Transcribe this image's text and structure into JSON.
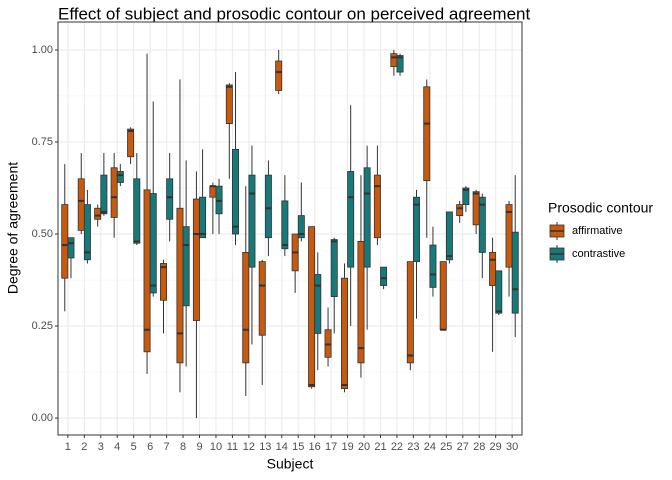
{
  "chart_data": {
    "type": "boxplot",
    "title": "Effect of subject and prosodic contour on perceived agreement",
    "x_label": "Subject",
    "y_label": "Degree of agreement",
    "legend_title": "Prosodic contour",
    "legend_position": "right",
    "grid": true,
    "categories": [
      "1",
      "2",
      "3",
      "4",
      "5",
      "6",
      "7",
      "8",
      "9",
      "10",
      "11",
      "12",
      "13",
      "14",
      "15",
      "16",
      "17",
      "19",
      "20",
      "21",
      "22",
      "23",
      "24",
      "25",
      "27",
      "28",
      "29",
      "30"
    ],
    "ylim": [
      -0.046,
      1.076
    ],
    "yticks": [
      {
        "value": 0,
        "label": "0.00"
      },
      {
        "value": 0.25,
        "label": "0.25"
      },
      {
        "value": 0.5,
        "label": "0.50"
      },
      {
        "value": 0.75,
        "label": "0.75"
      },
      {
        "value": 1,
        "label": "1.00"
      }
    ],
    "series": [
      {
        "name": "affirmative",
        "color": "#c85a0f",
        "min": [
          0.29,
          0.5,
          0.52,
          0.49,
          0.69,
          0.12,
          0.23,
          0.07,
          0.0,
          0.5,
          0.65,
          0.06,
          0.09,
          0.88,
          0.34,
          0.08,
          0.14,
          0.07,
          0.11,
          0.47,
          0.93,
          0.13,
          0.49,
          0.24,
          0.53,
          0.5,
          0.18,
          0.33
        ],
        "q1": [
          0.38,
          0.51,
          0.54,
          0.545,
          0.71,
          0.18,
          0.32,
          0.15,
          0.265,
          0.6,
          0.8,
          0.15,
          0.225,
          0.89,
          0.4,
          0.085,
          0.165,
          0.08,
          0.15,
          0.49,
          0.955,
          0.15,
          0.645,
          0.24,
          0.55,
          0.525,
          0.36,
          0.41
        ],
        "median": [
          0.47,
          0.59,
          0.55,
          0.6,
          0.78,
          0.24,
          0.41,
          0.23,
          0.5,
          0.63,
          0.9,
          0.24,
          0.36,
          0.94,
          0.45,
          0.09,
          0.2,
          0.09,
          0.19,
          0.63,
          0.98,
          0.17,
          0.8,
          0.24,
          0.57,
          0.61,
          0.43,
          0.56
        ],
        "q3": [
          0.58,
          0.65,
          0.57,
          0.68,
          0.785,
          0.62,
          0.42,
          0.57,
          0.595,
          0.63,
          0.905,
          0.45,
          0.425,
          0.97,
          0.5,
          0.52,
          0.24,
          0.38,
          0.48,
          0.66,
          0.99,
          0.425,
          0.9,
          0.425,
          0.58,
          0.615,
          0.45,
          0.58
        ],
        "max": [
          0.69,
          0.72,
          0.58,
          0.72,
          0.79,
          0.99,
          0.43,
          0.92,
          0.67,
          0.64,
          0.91,
          0.63,
          0.43,
          1.0,
          0.5,
          0.52,
          0.3,
          0.42,
          0.66,
          0.74,
          1.0,
          0.425,
          0.92,
          0.425,
          0.59,
          0.62,
          0.49,
          0.59
        ]
      },
      {
        "name": "contrastive",
        "color": "#17797a",
        "min": [
          0.38,
          0.42,
          0.55,
          0.63,
          0.47,
          0.33,
          0.48,
          0.14,
          0.49,
          0.5,
          0.47,
          0.2,
          0.44,
          0.44,
          0.48,
          0.13,
          0.23,
          0.25,
          0.24,
          0.35,
          0.93,
          0.27,
          0.33,
          0.42,
          0.56,
          0.38,
          0.28,
          0.22
        ],
        "q1": [
          0.435,
          0.43,
          0.555,
          0.64,
          0.475,
          0.34,
          0.54,
          0.305,
          0.49,
          0.555,
          0.5,
          0.41,
          0.49,
          0.46,
          0.49,
          0.23,
          0.33,
          0.41,
          0.41,
          0.36,
          0.94,
          0.425,
          0.355,
          0.43,
          0.58,
          0.45,
          0.285,
          0.285
        ],
        "median": [
          0.475,
          0.45,
          0.56,
          0.66,
          0.48,
          0.36,
          0.6,
          0.47,
          0.5,
          0.59,
          0.52,
          0.61,
          0.57,
          0.47,
          0.5,
          0.36,
          0.48,
          0.6,
          0.61,
          0.38,
          0.98,
          0.58,
          0.39,
          0.44,
          0.62,
          0.58,
          0.29,
          0.35
        ],
        "q3": [
          0.49,
          0.58,
          0.66,
          0.67,
          0.65,
          0.61,
          0.65,
          0.52,
          0.6,
          0.63,
          0.73,
          0.66,
          0.66,
          0.59,
          0.55,
          0.39,
          0.485,
          0.67,
          0.68,
          0.41,
          0.985,
          0.6,
          0.47,
          0.56,
          0.625,
          0.6,
          0.4,
          0.505
        ],
        "max": [
          0.49,
          0.62,
          0.72,
          0.69,
          0.72,
          0.86,
          0.72,
          0.7,
          0.73,
          0.65,
          0.94,
          0.74,
          0.7,
          0.66,
          0.64,
          0.45,
          0.49,
          0.85,
          0.74,
          0.41,
          0.99,
          0.62,
          0.52,
          0.56,
          0.63,
          0.61,
          0.4,
          0.66
        ]
      }
    ]
  }
}
